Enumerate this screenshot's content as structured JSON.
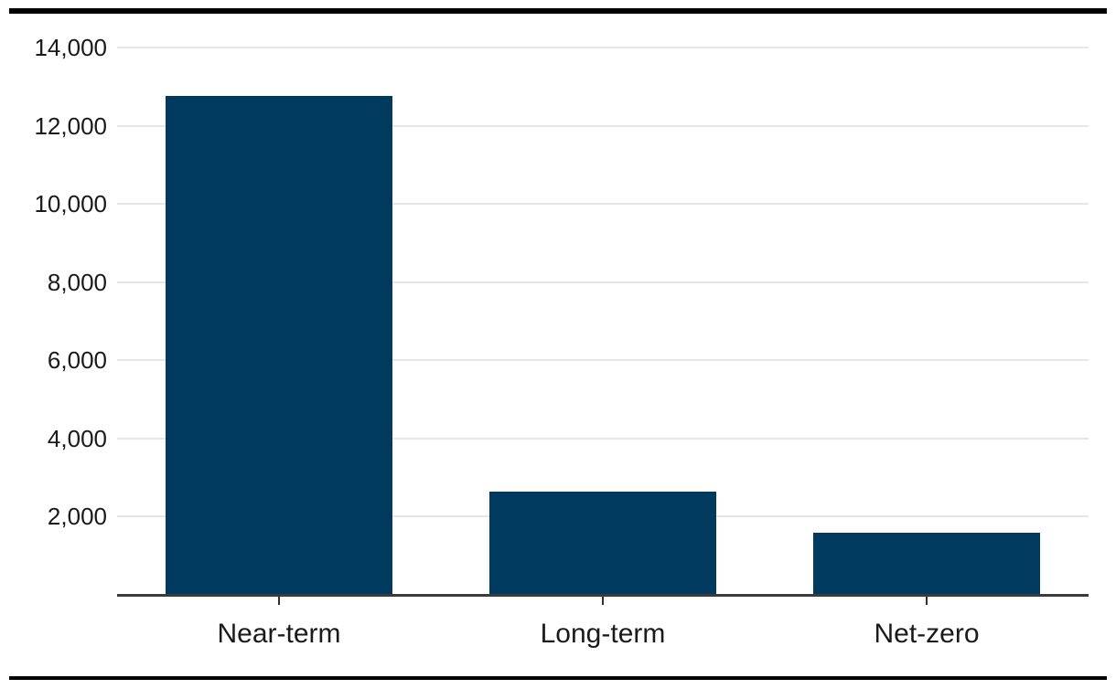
{
  "page": {
    "background": "#ffffff",
    "top_rule_color": "#000000",
    "bottom_rule_color": "#000000"
  },
  "chart_data": {
    "type": "bar",
    "categories": [
      "Near-term",
      "Long-term",
      "Net-zero"
    ],
    "values": [
      12750,
      2650,
      1600
    ],
    "title": "",
    "xlabel": "",
    "ylabel": "",
    "ylim": [
      0,
      14000
    ],
    "yticks": [
      2000,
      4000,
      6000,
      8000,
      10000,
      12000,
      14000
    ],
    "ytick_labels": [
      "2,000",
      "4,000",
      "6,000",
      "8,000",
      "10,000",
      "12,000",
      "14,000"
    ],
    "grid": "horizontal-only",
    "legend": "none",
    "colors": {
      "bar": "#003a5f",
      "axis_line": "#3b3b3b",
      "gridline": "#e6e6e6",
      "tick_mark": "#333333",
      "tick_label_text": "#1a1a1a"
    }
  }
}
